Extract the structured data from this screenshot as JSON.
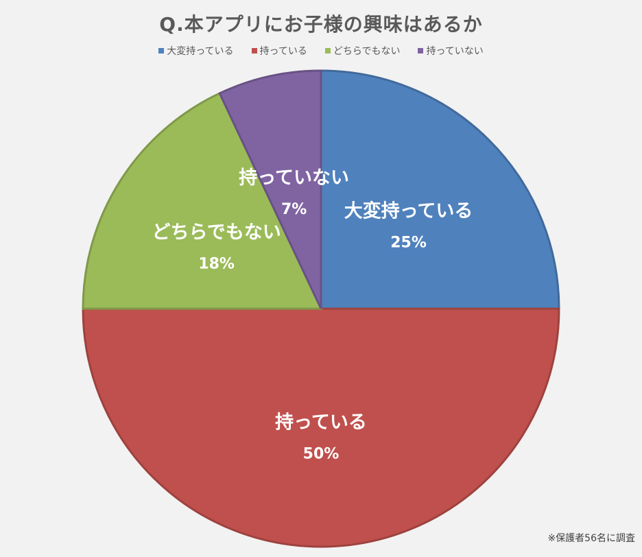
{
  "chart_data": {
    "type": "pie",
    "title": "Q.本アプリにお子様の興味はあるか",
    "legend_position": "top",
    "categories": [
      "大変持っている",
      "持っている",
      "どちらでもない",
      "持っていない"
    ],
    "values": [
      25,
      50,
      18,
      7
    ],
    "value_labels": [
      "25%",
      "50%",
      "18%",
      "7%"
    ],
    "colors": [
      "#4f81bd",
      "#c0504d",
      "#9bbb59",
      "#8064a2"
    ],
    "start_angle_deg": 0,
    "direction": "clockwise"
  },
  "footnote": "※保護者56名に調査"
}
